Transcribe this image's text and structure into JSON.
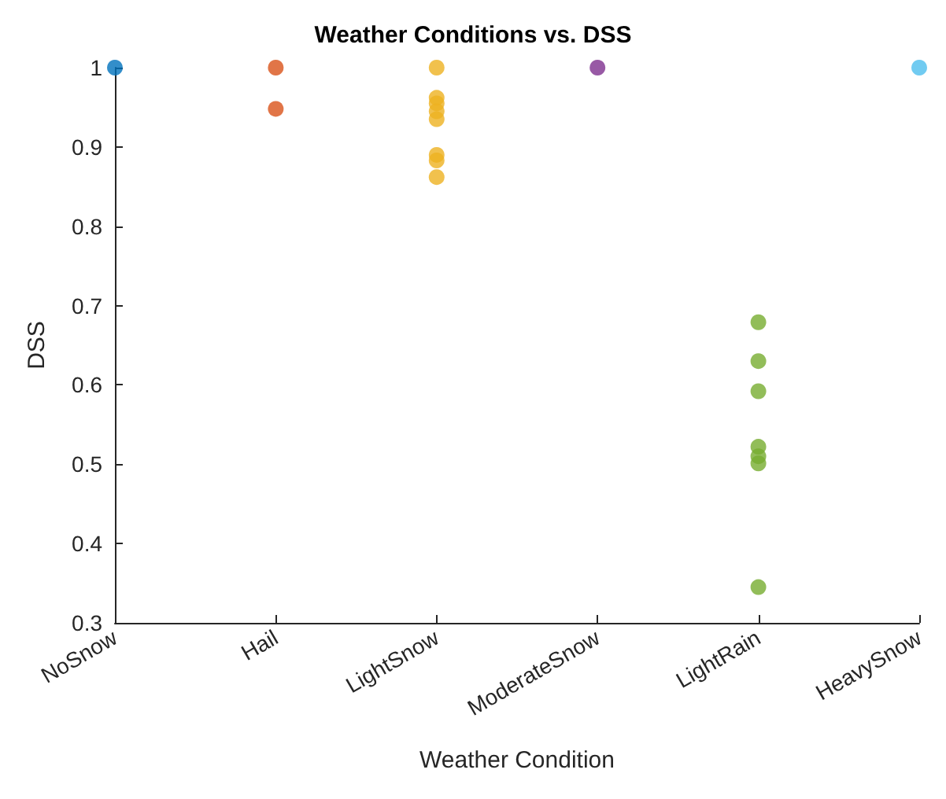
{
  "chart_data": {
    "type": "scatter",
    "title": "Weather Conditions vs. DSS",
    "xlabel": "Weather Condition",
    "ylabel": "DSS",
    "categories": [
      "NoSnow",
      "Hail",
      "LightSnow",
      "ModerateSnow",
      "LightRain",
      "HeavySnow"
    ],
    "series": [
      {
        "color": "#0072bd",
        "x": [
          "NoSnow"
        ],
        "values": [
          1
        ]
      },
      {
        "color": "#d95319",
        "x": [
          "Hail",
          "Hail"
        ],
        "values": [
          1,
          0.948
        ]
      },
      {
        "color": "#edb120",
        "x": [
          "LightSnow",
          "LightSnow",
          "LightSnow",
          "LightSnow",
          "LightSnow",
          "LightSnow",
          "LightSnow",
          "LightSnow"
        ],
        "values": [
          1,
          0.962,
          0.955,
          0.945,
          0.935,
          0.89,
          0.883,
          0.862
        ]
      },
      {
        "color": "#7e2f8e",
        "x": [
          "ModerateSnow"
        ],
        "values": [
          1
        ]
      },
      {
        "color": "#77ac30",
        "x": [
          "LightRain",
          "LightRain",
          "LightRain",
          "LightRain",
          "LightRain",
          "LightRain",
          "LightRain"
        ],
        "values": [
          0.679,
          0.63,
          0.592,
          0.522,
          0.51,
          0.501,
          0.345
        ]
      },
      {
        "color": "#4dbeee",
        "x": [
          "HeavySnow"
        ],
        "values": [
          1
        ]
      }
    ],
    "ylim": [
      0.3,
      1
    ],
    "yticks": [
      0.3,
      0.4,
      0.5,
      0.6,
      0.7,
      0.8,
      0.9,
      1
    ],
    "grid": false,
    "marker": "circle"
  }
}
